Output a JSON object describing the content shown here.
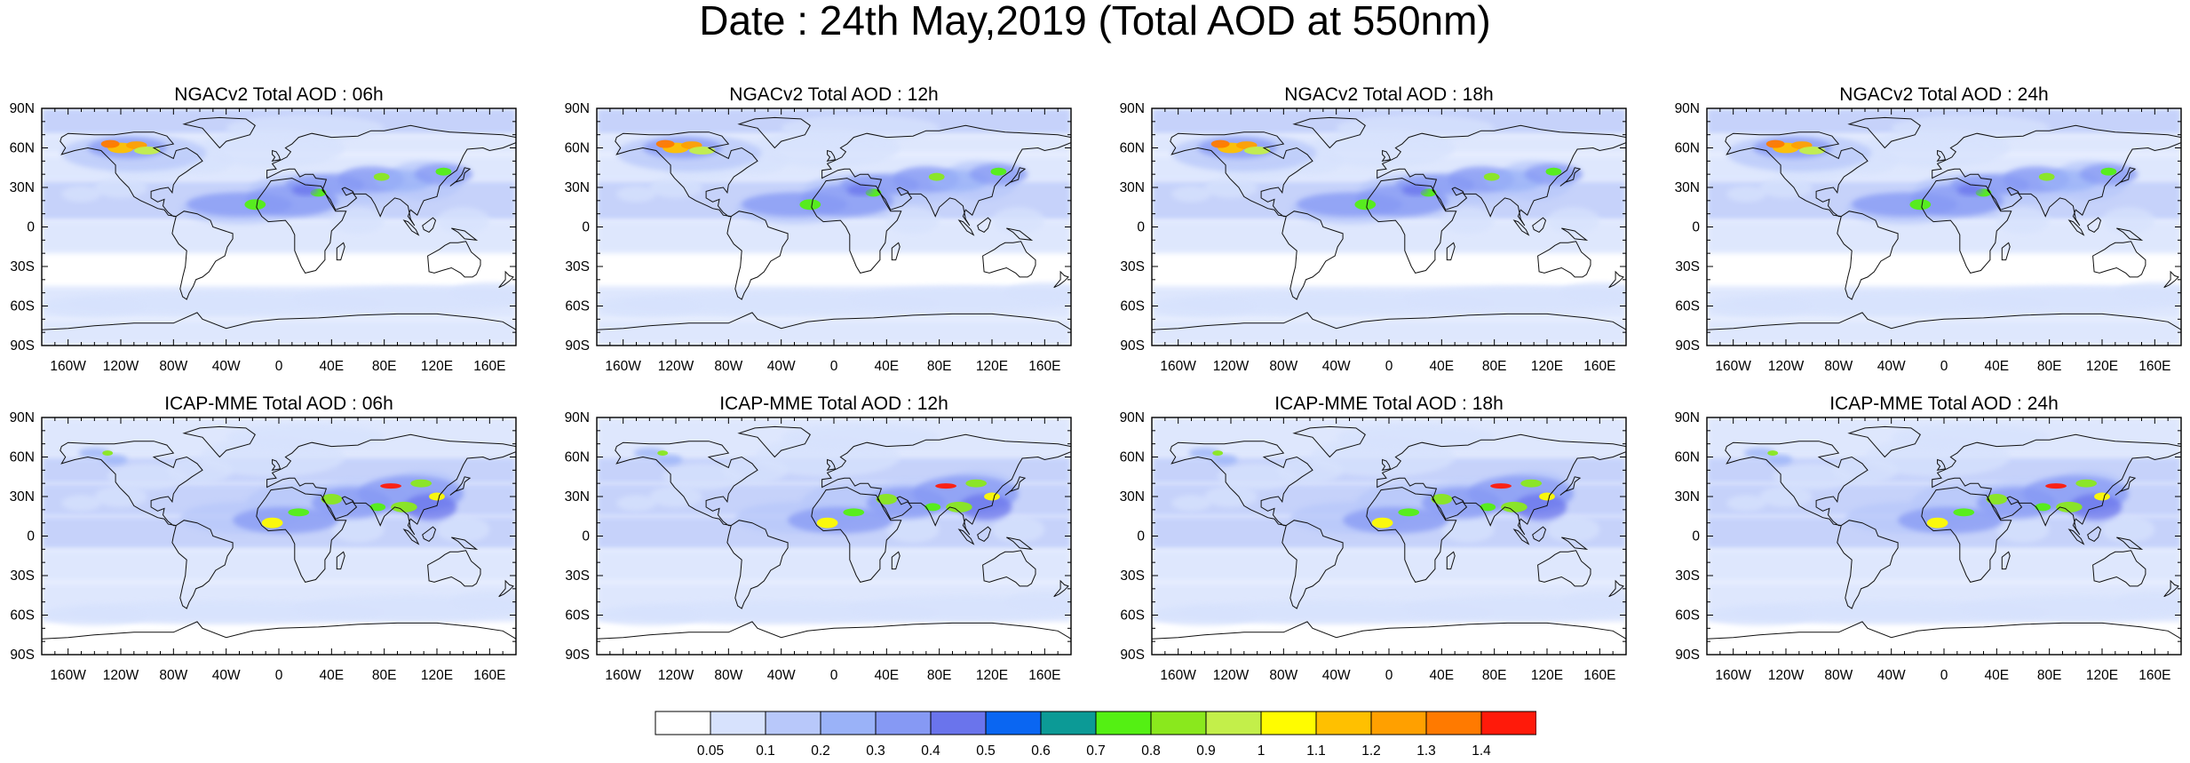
{
  "title": "Date : 24th May,2019 (Total AOD at 550nm)",
  "axes": {
    "lat_ticks": [
      "90N",
      "60N",
      "30N",
      "0",
      "30S",
      "60S",
      "90S"
    ],
    "lon_ticks": [
      "160W",
      "120W",
      "80W",
      "40W",
      "0",
      "40E",
      "80E",
      "120E",
      "160E"
    ],
    "lon_values": [
      -160,
      -120,
      -80,
      -40,
      0,
      40,
      80,
      120,
      160
    ],
    "lat_values": [
      90,
      60,
      30,
      0,
      -30,
      -60,
      -90
    ],
    "lon_range": [
      -180,
      180
    ],
    "lat_range": [
      -90,
      90
    ]
  },
  "panels": [
    {
      "title": "NGACv2 Total AOD : 06h",
      "model": "ngac"
    },
    {
      "title": "NGACv2 Total AOD : 12h",
      "model": "ngac"
    },
    {
      "title": "NGACv2 Total AOD : 18h",
      "model": "ngac"
    },
    {
      "title": "NGACv2 Total AOD : 24h",
      "model": "ngac"
    },
    {
      "title": "ICAP-MME Total AOD : 06h",
      "model": "icap"
    },
    {
      "title": "ICAP-MME Total AOD : 12h",
      "model": "icap"
    },
    {
      "title": "ICAP-MME Total AOD : 18h",
      "model": "icap"
    },
    {
      "title": "ICAP-MME Total AOD : 24h",
      "model": "icap"
    }
  ],
  "colorbar": {
    "labels": [
      "0.05",
      "0.1",
      "0.2",
      "0.3",
      "0.4",
      "0.5",
      "0.6",
      "0.7",
      "0.8",
      "0.9",
      "1",
      "1.1",
      "1.2",
      "1.3",
      "1.4"
    ],
    "colors": [
      "#ffffff",
      "#d7e2fd",
      "#b8c8fa",
      "#9ab2f8",
      "#8699f4",
      "#6a74ec",
      "#0a66f2",
      "#0c9a96",
      "#54f013",
      "#8ae81d",
      "#c3ef4a",
      "#fffc00",
      "#ffc000",
      "#ffa000",
      "#ff7a00",
      "#ff1a0a"
    ]
  }
}
